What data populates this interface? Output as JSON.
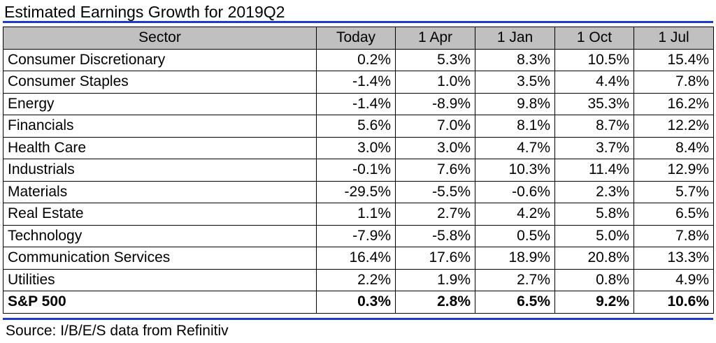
{
  "title": "Estimated Earnings Growth for 2019Q2",
  "headers": [
    "Sector",
    "Today",
    "1 Apr",
    "1 Jan",
    "1 Oct",
    "1 Jul"
  ],
  "rows": [
    {
      "sector": "Consumer Discretionary",
      "values": [
        "0.2%",
        "5.3%",
        "8.3%",
        "10.5%",
        "15.4%"
      ]
    },
    {
      "sector": "Consumer Staples",
      "values": [
        "-1.4%",
        "1.0%",
        "3.5%",
        "4.4%",
        "7.8%"
      ]
    },
    {
      "sector": "Energy",
      "values": [
        "-1.4%",
        "-8.9%",
        "9.8%",
        "35.3%",
        "16.2%"
      ]
    },
    {
      "sector": "Financials",
      "values": [
        "5.6%",
        "7.0%",
        "8.1%",
        "8.7%",
        "12.2%"
      ]
    },
    {
      "sector": "Health Care",
      "values": [
        "3.0%",
        "3.0%",
        "4.7%",
        "3.7%",
        "8.4%"
      ]
    },
    {
      "sector": "Industrials",
      "values": [
        "-0.1%",
        "7.6%",
        "10.3%",
        "11.4%",
        "12.9%"
      ]
    },
    {
      "sector": "Materials",
      "values": [
        "-29.5%",
        "-5.5%",
        "-0.6%",
        "2.3%",
        "5.7%"
      ]
    },
    {
      "sector": "Real Estate",
      "values": [
        "1.1%",
        "2.7%",
        "4.2%",
        "5.8%",
        "6.5%"
      ]
    },
    {
      "sector": "Technology",
      "values": [
        "-7.9%",
        "-5.8%",
        "0.5%",
        "5.0%",
        "7.8%"
      ]
    },
    {
      "sector": "Communication Services",
      "values": [
        "16.4%",
        "17.6%",
        "18.9%",
        "20.8%",
        "13.3%"
      ]
    },
    {
      "sector": "Utilities",
      "values": [
        "2.2%",
        "1.9%",
        "2.7%",
        "0.8%",
        "4.9%"
      ]
    },
    {
      "sector": "S&P 500",
      "values": [
        "0.3%",
        "2.8%",
        "6.5%",
        "9.2%",
        "10.6%"
      ]
    }
  ],
  "source": "Source: I/B/E/S data from Refinitiv",
  "colors": {
    "rule": "#1f3cc9",
    "header_bg": "#c0c0c0"
  },
  "chart_data": {
    "type": "table",
    "title": "Estimated Earnings Growth for 2019Q2",
    "columns": [
      "Sector",
      "Today",
      "1 Apr",
      "1 Jan",
      "1 Oct",
      "1 Jul"
    ],
    "rows": [
      [
        "Consumer Discretionary",
        0.2,
        5.3,
        8.3,
        10.5,
        15.4
      ],
      [
        "Consumer Staples",
        -1.4,
        1.0,
        3.5,
        4.4,
        7.8
      ],
      [
        "Energy",
        -1.4,
        -8.9,
        9.8,
        35.3,
        16.2
      ],
      [
        "Financials",
        5.6,
        7.0,
        8.1,
        8.7,
        12.2
      ],
      [
        "Health Care",
        3.0,
        3.0,
        4.7,
        3.7,
        8.4
      ],
      [
        "Industrials",
        -0.1,
        7.6,
        10.3,
        11.4,
        12.9
      ],
      [
        "Materials",
        -29.5,
        -5.5,
        -0.6,
        2.3,
        5.7
      ],
      [
        "Real Estate",
        1.1,
        2.7,
        4.2,
        5.8,
        6.5
      ],
      [
        "Technology",
        -7.9,
        -5.8,
        0.5,
        5.0,
        7.8
      ],
      [
        "Communication Services",
        16.4,
        17.6,
        18.9,
        20.8,
        13.3
      ],
      [
        "Utilities",
        2.2,
        1.9,
        2.7,
        0.8,
        4.9
      ],
      [
        "S&P 500",
        0.3,
        2.8,
        6.5,
        9.2,
        10.6
      ]
    ]
  }
}
